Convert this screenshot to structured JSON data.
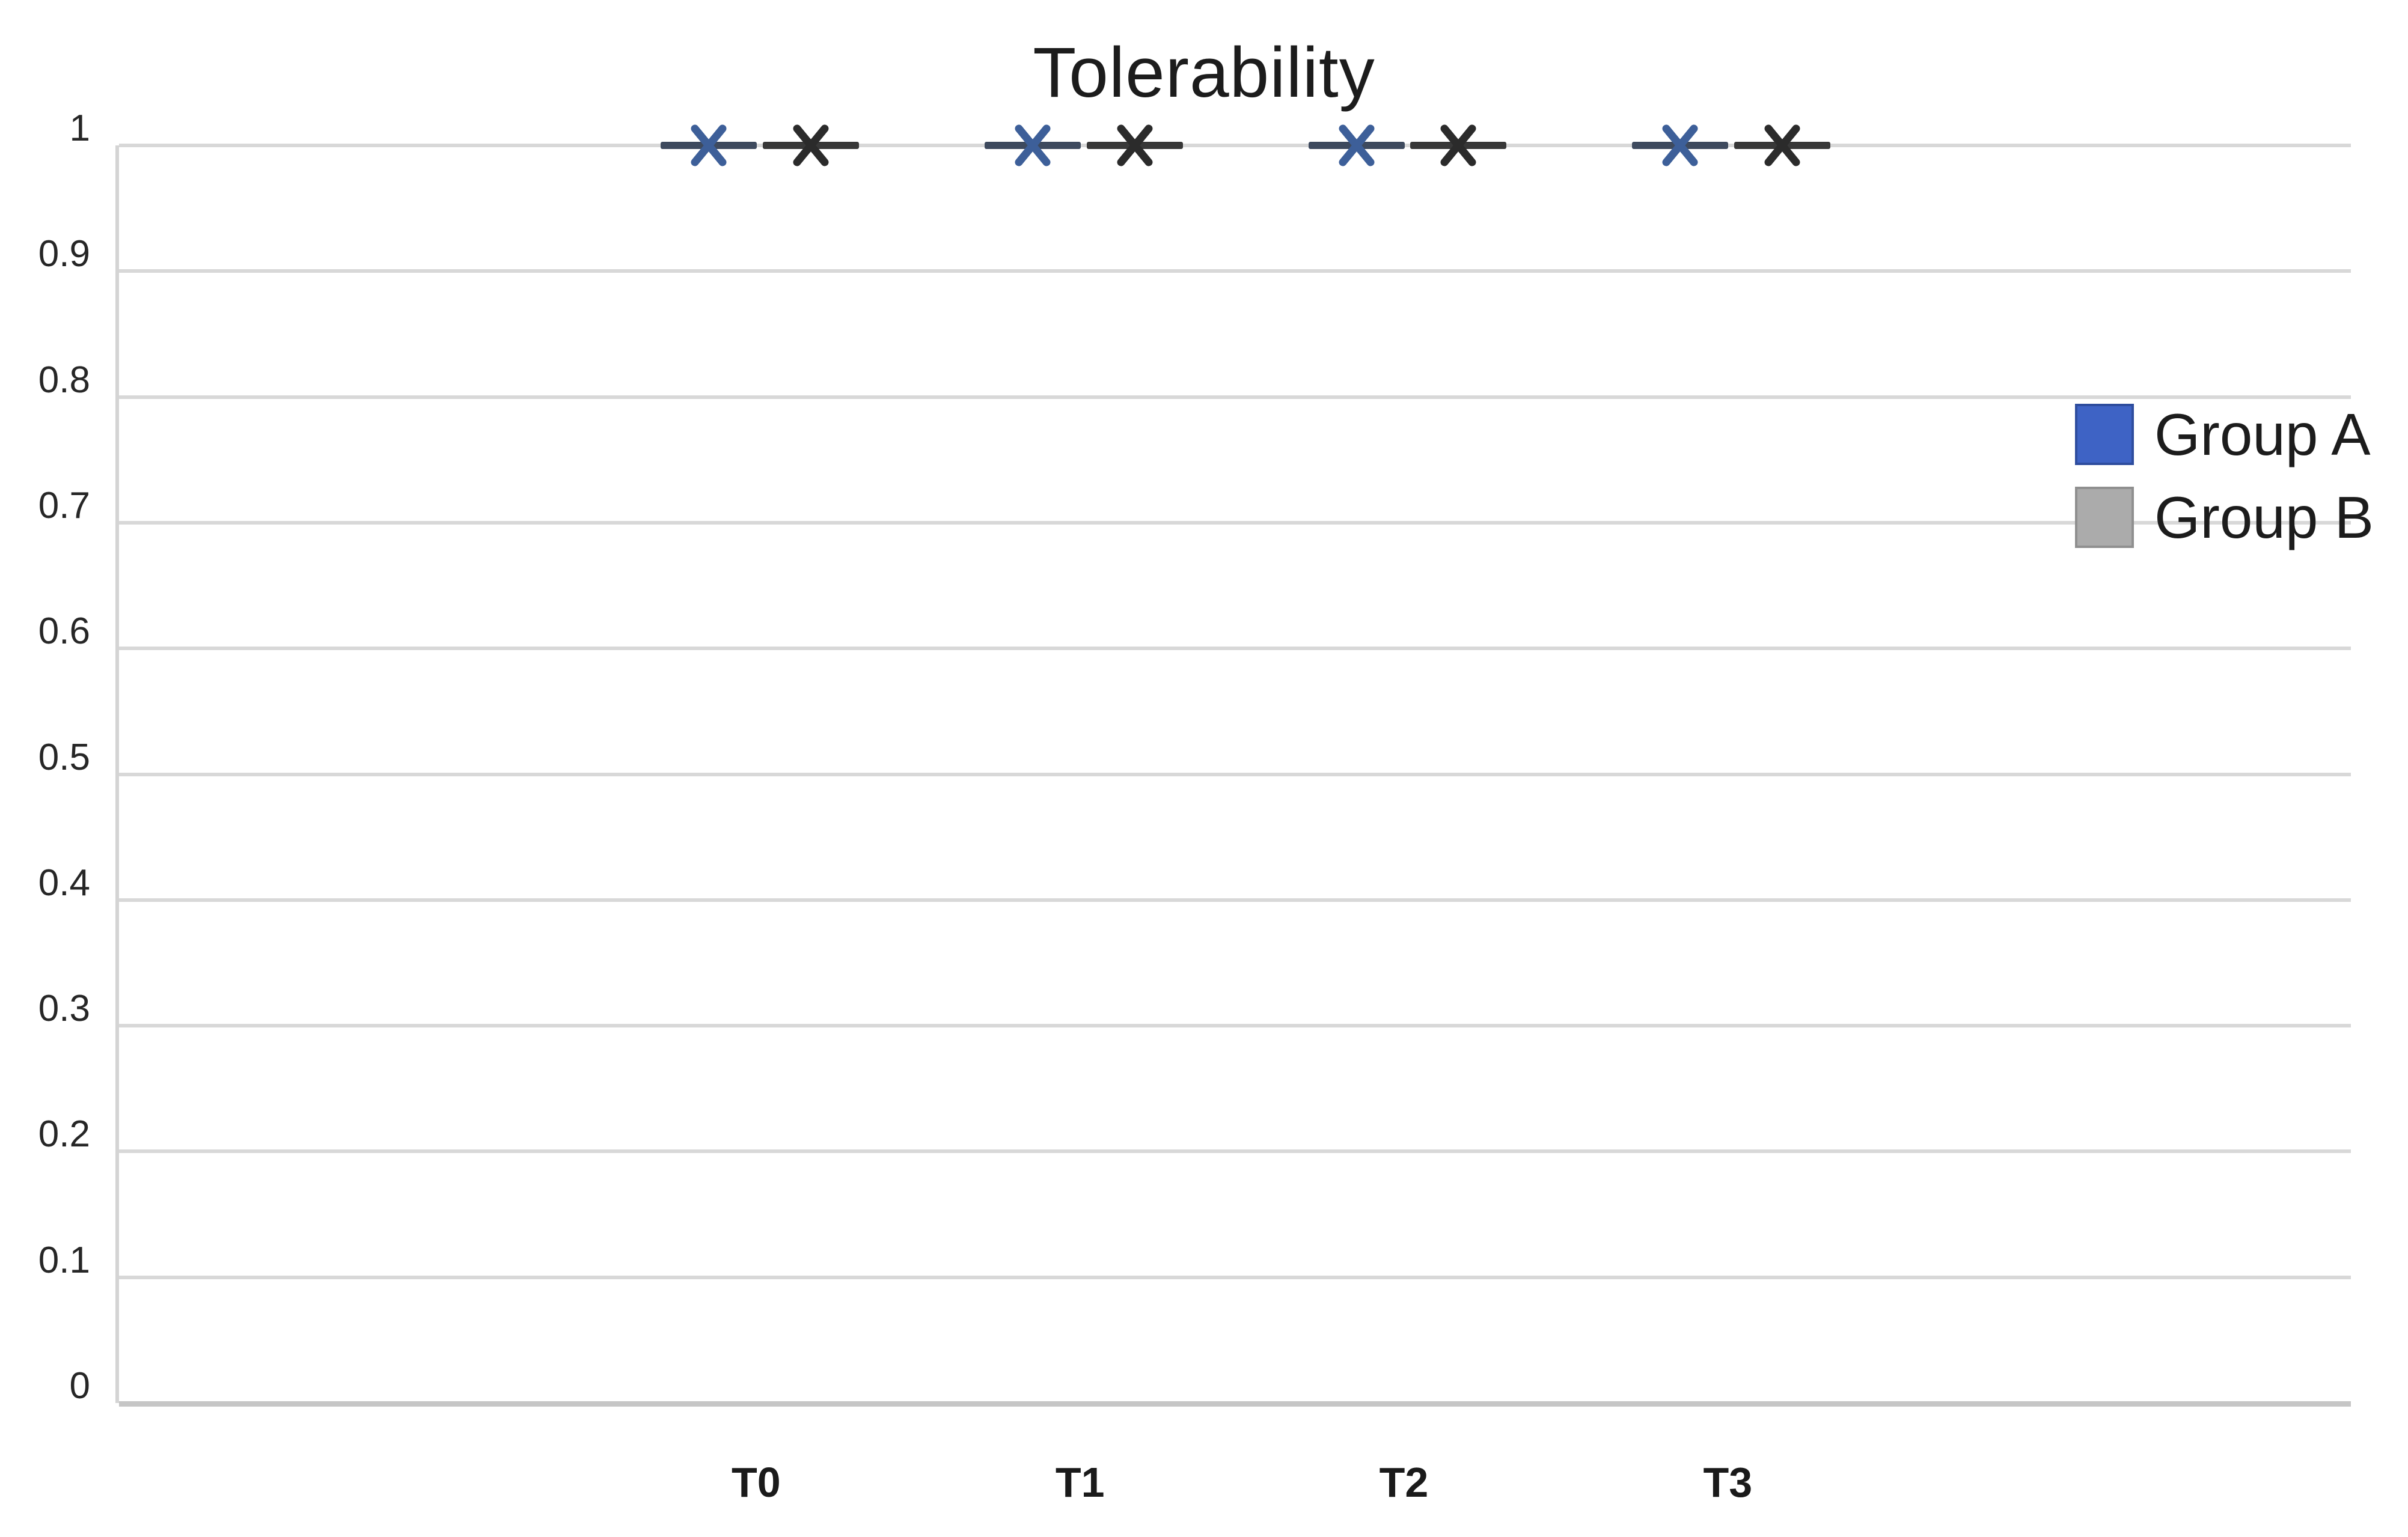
{
  "chart_data": {
    "type": "scatter",
    "title": "Tolerability",
    "categories": [
      "T0",
      "T1",
      "T2",
      "T3"
    ],
    "series": [
      {
        "name": "Group A",
        "values": [
          1,
          1,
          1,
          1
        ],
        "marker": "x",
        "marker_color": "#3d5f99",
        "dash_color": "#3e4a5e",
        "swatch_fill": "#3e63c5",
        "swatch_border": "#2e4d9e"
      },
      {
        "name": "Group B",
        "values": [
          1,
          1,
          1,
          1
        ],
        "marker": "x",
        "marker_color": "#2b2b2b",
        "dash_color": "#383838",
        "swatch_fill": "#ababab",
        "swatch_border": "#8f8f8f"
      }
    ],
    "y_axis": {
      "min": 0,
      "max": 1,
      "step": 0.1,
      "tick_labels": [
        "1",
        "0.9",
        "0.8",
        "0.7",
        "0.6",
        "0.5",
        "0.4",
        "0.3",
        "0.2",
        "0.1",
        "0"
      ]
    },
    "x_axis": {
      "tick_labels": [
        "T0",
        "T1",
        "T2",
        "T3"
      ]
    },
    "legend": {
      "position": "right",
      "entries": [
        "Group A",
        "Group B"
      ]
    },
    "grid": true,
    "ylim": [
      0,
      1
    ],
    "annotations": "All eight data points lie on the y = 1 gridline; each point is drawn as an X marker with a short dark horizontal dash through it (Group A blue X at left of each pair, Group B black X at right).",
    "layout": {
      "category_centers_pct": [
        31.4,
        44.85,
        58.3,
        71.75
      ],
      "pair_offset_pct": 2.12
    }
  },
  "colors": {
    "background": "#ffffff",
    "gridline": "#d8d8d8",
    "axis_line": "#c6c6c6",
    "plot_border": "#d4d4d4",
    "title_text": "#1c1c1c",
    "tick_text": "#262626"
  }
}
